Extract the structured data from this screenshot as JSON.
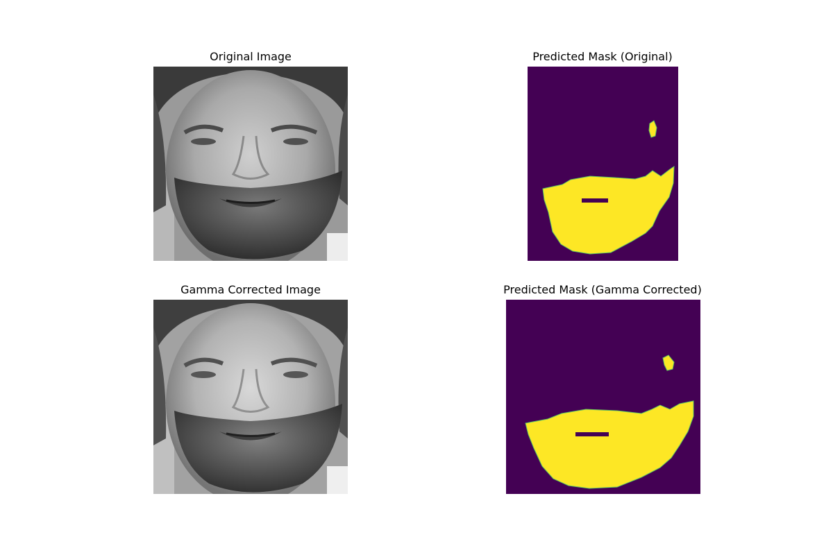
{
  "figure": {
    "panels": [
      {
        "title": "Original Image",
        "kind": "grayscale-face-photo"
      },
      {
        "title": "Predicted Mask (Original)",
        "kind": "segmentation-mask"
      },
      {
        "title": "Gamma Corrected Image",
        "kind": "grayscale-face-photo"
      },
      {
        "title": "Predicted Mask (Gamma Corrected)",
        "kind": "segmentation-mask"
      }
    ],
    "colors": {
      "mask_background": "#440154",
      "mask_foreground": "#fde725",
      "mask_edge": "#5ec962"
    }
  }
}
